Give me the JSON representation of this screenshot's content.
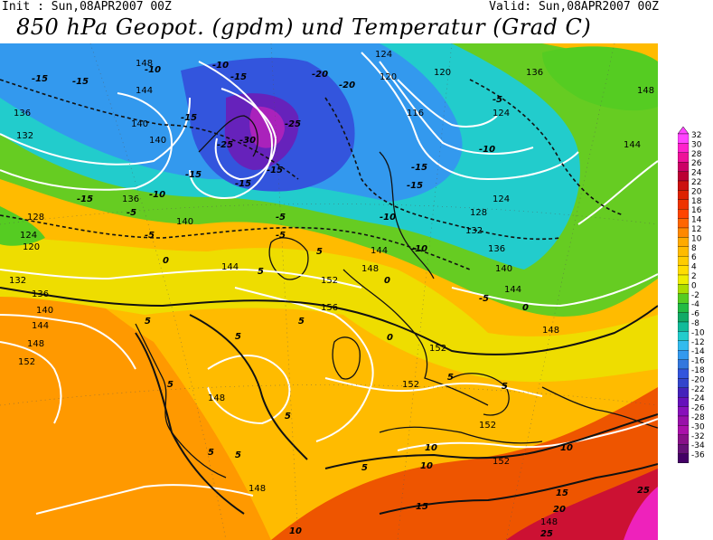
{
  "header": {
    "init_text": "Init : Sun,08APR2007 00Z",
    "valid_text": "Valid: Sun,08APR2007 00Z",
    "title": "850 hPa Geopot. (gpdm) und Temperatur (Grad C)"
  },
  "legend": {
    "levels": [
      "32",
      "30",
      "28",
      "26",
      "24",
      "22",
      "20",
      "18",
      "16",
      "14",
      "12",
      "10",
      "8",
      "6",
      "4",
      "2",
      "0",
      "-2",
      "-4",
      "-6",
      "-8",
      "-10",
      "-12",
      "-14",
      "-16",
      "-18",
      "-20",
      "-22",
      "-24",
      "-26",
      "-28",
      "-30",
      "-32",
      "-34",
      "-36"
    ],
    "colors": [
      "#ff44ff",
      "#ff22cc",
      "#ee1199",
      "#cc0066",
      "#bb0033",
      "#cc1111",
      "#dd2200",
      "#ee3300",
      "#ff4400",
      "#ff6600",
      "#ff8800",
      "#ffaa00",
      "#ffbb00",
      "#ffcc00",
      "#ffdd00",
      "#eeee00",
      "#aadd00",
      "#55cc22",
      "#22bb44",
      "#11aa66",
      "#11bb99",
      "#22cccc",
      "#33bbee",
      "#3399ee",
      "#3377dd",
      "#3355dd",
      "#3344cc",
      "#4422bb",
      "#6611bb",
      "#8811bb",
      "#9911aa",
      "#aa11aa",
      "#881188",
      "#661177",
      "#440066"
    ]
  },
  "geopotential_labels": [
    "148",
    "144",
    "136",
    "132",
    "128",
    "124",
    "120",
    "140",
    "152",
    "116",
    "156"
  ],
  "temperature_labels": [
    "-15",
    "-10",
    "-20",
    "-5",
    "0",
    "5",
    "10",
    "15",
    "20",
    "25",
    "-25",
    "-30"
  ]
}
